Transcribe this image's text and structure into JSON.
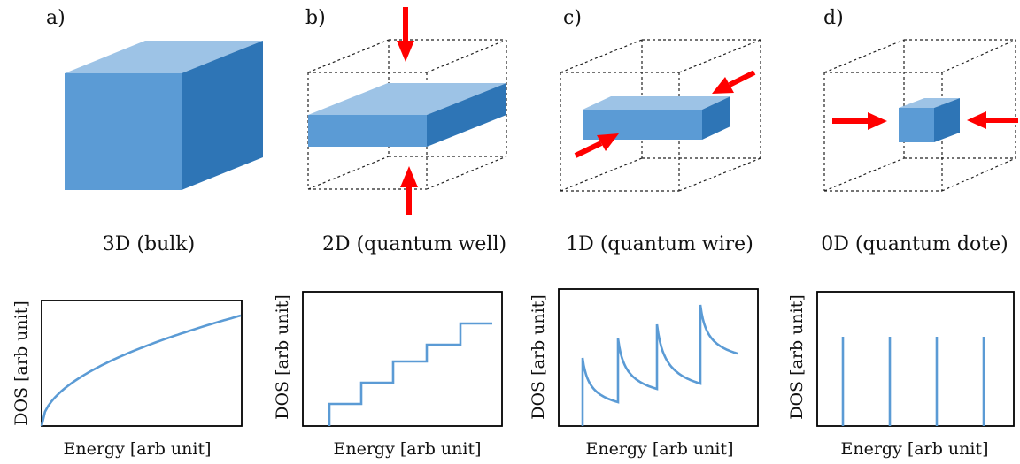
{
  "colors": {
    "front": "#5b9bd5",
    "top": "#9dc3e6",
    "side": "#2e75b6",
    "arrow": "#ff0000",
    "curve": "#5b9bd5"
  },
  "panels": [
    {
      "label": "a)",
      "caption": "3D (bulk)",
      "xlabel": "Energy [arb unit]",
      "ylabel": "DOS [arb unit]"
    },
    {
      "label": "b)",
      "caption": "2D (quantum well)",
      "xlabel": "Energy [arb unit]",
      "ylabel": "DOS [arb unit]"
    },
    {
      "label": "c)",
      "caption": "1D (quantum wire)",
      "xlabel": "Energy [arb unit]",
      "ylabel": "DOS [arb unit]"
    },
    {
      "label": "d)",
      "caption": "0D (quantum dote)",
      "xlabel": "Energy [arb unit]",
      "ylabel": "DOS [arb unit]"
    }
  ]
}
